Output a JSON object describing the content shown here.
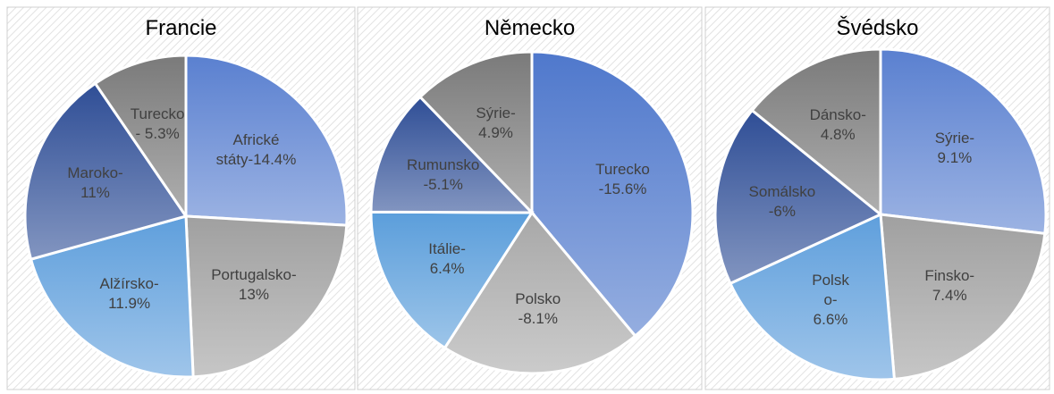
{
  "chart_data": [
    {
      "type": "pie",
      "title": "Francie",
      "values": [
        14.4,
        13,
        11.9,
        11,
        5.3
      ],
      "value_labels": [
        "Africké\nstáty-14.4%",
        "Portugalsko-\n13%",
        "Alžírsko-\n11.9%",
        "Maroko-\n11%",
        "Turecko\n- 5.3%"
      ],
      "colors": [
        "#5a80d0",
        "#a0a0a0",
        "#5f9fdc",
        "#2f4e96",
        "#7a7a7a"
      ]
    },
    {
      "type": "pie",
      "title": "Německo",
      "values": [
        15.6,
        8.1,
        6.4,
        5.1,
        4.9
      ],
      "value_labels": [
        "Turecko\n-15.6%",
        "Polsko\n-8.1%",
        "Itálie-\n6.4%",
        "Rumunsko\n-5.1%",
        "Sýrie-\n4.9%"
      ],
      "colors": [
        "#4f78cc",
        "#a8a8a8",
        "#5b9edb",
        "#2f4e96",
        "#7a7a7a"
      ]
    },
    {
      "type": "pie",
      "title": "Švédsko",
      "values": [
        9.1,
        7.4,
        6.6,
        6,
        4.8
      ],
      "value_labels": [
        "Sýrie-\n9.1%",
        "Finsko-\n7.4%",
        "Polsk\no-\n6.6%",
        "Somálsko\n-6%",
        "Dánsko-\n4.8%"
      ],
      "colors": [
        "#5a80d0",
        "#a0a0a0",
        "#5f9fdc",
        "#2f4e96",
        "#7a7a7a"
      ]
    }
  ]
}
